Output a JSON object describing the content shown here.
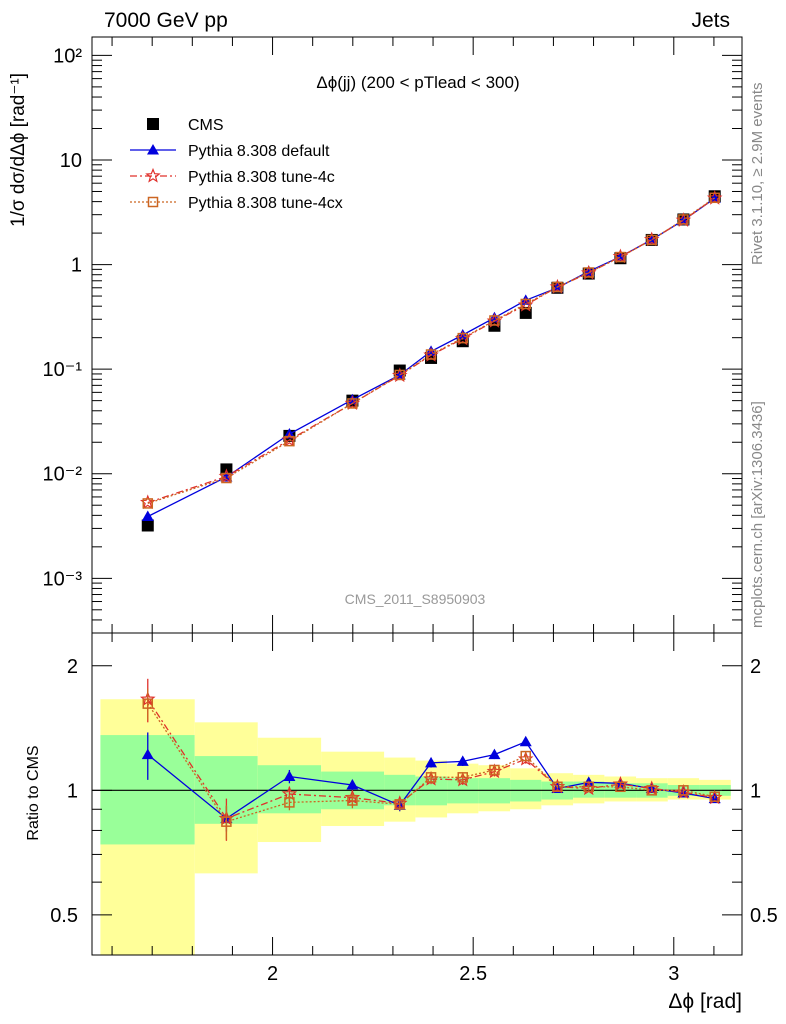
{
  "header": {
    "left": "7000 GeV pp",
    "right": "Jets"
  },
  "side_labels": {
    "rivet": "Rivet 3.1.10, ≥ 2.9M events",
    "mcplots": "mcplots.cern.ch [arXiv:1306.3436]"
  },
  "watermark": "CMS_2011_S8950903",
  "chart_data": [
    {
      "type": "scatter",
      "title": "Δϕ(jj) (200 < pTlead <  300)",
      "ylabel": "1/σ dσ/dΔϕ [rad⁻¹]",
      "yscale": "log",
      "ylim": [
        0.0003,
        150
      ],
      "xlim": [
        1.55,
        3.17
      ],
      "ytick_labels": [
        "10⁻³",
        "10⁻²",
        "10⁻¹",
        "1",
        "10",
        "10²"
      ],
      "legend": {
        "position": "top-left"
      },
      "x": [
        1.689,
        1.885,
        2.042,
        2.199,
        2.317,
        2.395,
        2.474,
        2.553,
        2.631,
        2.71,
        2.788,
        2.867,
        2.945,
        3.024,
        3.102
      ],
      "series": [
        {
          "name": "CMS",
          "color": "#000000",
          "marker": "square",
          "values": [
            0.0032,
            0.011,
            0.023,
            0.05,
            0.097,
            0.128,
            0.185,
            0.26,
            0.345,
            0.6,
            0.82,
            1.15,
            1.72,
            2.7,
            4.5
          ]
        },
        {
          "name": "Pythia 8.308 default",
          "color": "#0000dd",
          "marker": "triangle",
          "line": "solid",
          "values": [
            0.0039,
            0.0093,
            0.024,
            0.051,
            0.088,
            0.148,
            0.212,
            0.31,
            0.455,
            0.6,
            0.86,
            1.19,
            1.73,
            2.65,
            4.3
          ]
        },
        {
          "name": "Pythia 8.308 tune-4c",
          "color": "#e0302b",
          "marker": "star",
          "line": "dashdot",
          "values": [
            0.0053,
            0.0094,
            0.021,
            0.047,
            0.087,
            0.136,
            0.195,
            0.288,
            0.41,
            0.61,
            0.83,
            1.19,
            1.73,
            2.65,
            4.32
          ]
        },
        {
          "name": "Pythia 8.308 tune-4cx",
          "color": "#cc6622",
          "marker": "open-square",
          "line": "dotted",
          "values": [
            0.0052,
            0.0091,
            0.0205,
            0.047,
            0.088,
            0.138,
            0.198,
            0.292,
            0.42,
            0.61,
            0.84,
            1.18,
            1.72,
            2.7,
            4.35
          ]
        }
      ]
    },
    {
      "type": "line",
      "ylabel": "Ratio to CMS",
      "yscale": "log",
      "ylim": [
        0.4,
        2.4
      ],
      "xlim": [
        1.55,
        3.17
      ],
      "xlabel": "Δϕ [rad]",
      "ytick_labels": [
        "0.5",
        "1",
        "2"
      ],
      "xtick_labels": [
        "2",
        "2.5",
        "3"
      ],
      "bands": {
        "edges": [
          1.571,
          1.806,
          1.963,
          2.121,
          2.278,
          2.356,
          2.435,
          2.513,
          2.592,
          2.67,
          2.749,
          2.827,
          2.906,
          2.985,
          3.063,
          3.142
        ],
        "inner_lo": [
          0.74,
          0.83,
          0.88,
          0.9,
          0.92,
          0.92,
          0.93,
          0.93,
          0.94,
          0.95,
          0.96,
          0.96,
          0.96,
          0.97,
          0.97
        ],
        "inner_hi": [
          1.36,
          1.21,
          1.15,
          1.11,
          1.09,
          1.08,
          1.07,
          1.07,
          1.06,
          1.05,
          1.05,
          1.04,
          1.04,
          1.03,
          1.03
        ],
        "outer_lo": [
          0.35,
          0.63,
          0.75,
          0.82,
          0.84,
          0.86,
          0.88,
          0.89,
          0.9,
          0.92,
          0.93,
          0.94,
          0.94,
          0.95,
          0.95
        ],
        "outer_hi": [
          1.66,
          1.46,
          1.34,
          1.24,
          1.2,
          1.18,
          1.16,
          1.15,
          1.13,
          1.1,
          1.09,
          1.08,
          1.07,
          1.07,
          1.06
        ],
        "inner_color": "#99ff99",
        "outer_color": "#ffff99"
      },
      "x": [
        1.689,
        1.885,
        2.042,
        2.199,
        2.317,
        2.395,
        2.474,
        2.553,
        2.631,
        2.71,
        2.788,
        2.867,
        2.945,
        3.024,
        3.102
      ],
      "series": [
        {
          "name": "Pythia 8.308 default",
          "color": "#0000dd",
          "marker": "triangle",
          "values": [
            1.22,
            0.855,
            1.08,
            1.03,
            0.92,
            1.165,
            1.175,
            1.22,
            1.31,
            1.01,
            1.045,
            1.04,
            1.01,
            0.985,
            0.955
          ],
          "err": [
            0.16,
            0.06,
            0.04,
            0.03,
            0.03,
            0.03,
            0.03,
            0.03,
            0.03,
            0.01,
            0.01,
            0.01,
            0.01,
            0.01,
            0.005
          ]
        },
        {
          "name": "Pythia 8.308 tune-4c",
          "color": "#e0302b",
          "marker": "star",
          "values": [
            1.66,
            0.855,
            0.98,
            0.96,
            0.93,
            1.065,
            1.06,
            1.11,
            1.19,
            1.02,
            1.01,
            1.035,
            1.01,
            0.99,
            0.96
          ],
          "err": [
            0.2,
            0.1,
            0.04,
            0.04,
            0.03,
            0.03,
            0.03,
            0.03,
            0.03,
            0.01,
            0.01,
            0.01,
            0.01,
            0.01,
            0.005
          ]
        },
        {
          "name": "Pythia 8.308 tune-4cx",
          "color": "#cc6622",
          "marker": "open-square",
          "values": [
            1.62,
            0.84,
            0.935,
            0.945,
            0.925,
            1.075,
            1.075,
            1.12,
            1.21,
            1.02,
            1.02,
            1.02,
            1.0,
            1.0,
            0.965
          ],
          "err": [
            0.14,
            0.08,
            0.04,
            0.04,
            0.03,
            0.03,
            0.03,
            0.03,
            0.03,
            0.01,
            0.01,
            0.01,
            0.01,
            0.01,
            0.005
          ]
        }
      ]
    }
  ]
}
